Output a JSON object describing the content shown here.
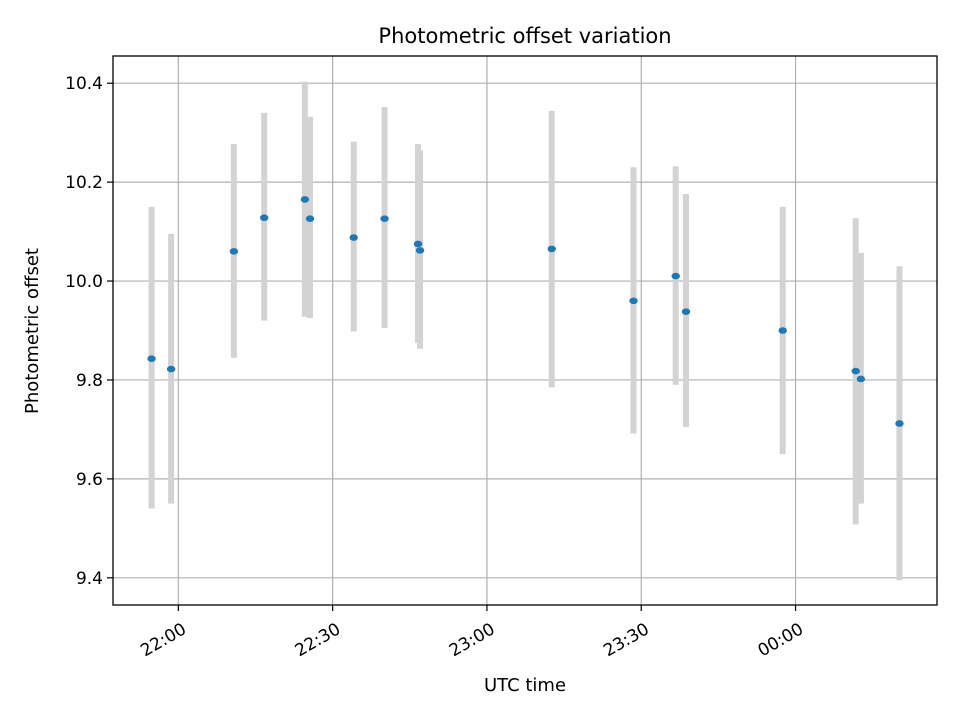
{
  "chart_data": {
    "type": "scatter",
    "title": "Photometric offset variation",
    "xlabel": "UTC time",
    "ylabel": "Photometric offset",
    "x_tick_labels": [
      "22:00",
      "22:30",
      "23:00",
      "23:30",
      "00:00"
    ],
    "x_tick_minutes": [
      0,
      30,
      60,
      90,
      120
    ],
    "xlim_minutes": [
      -12.7,
      147.5
    ],
    "y_ticks": [
      9.4,
      9.6,
      9.8,
      10.0,
      10.2,
      10.4
    ],
    "y_tick_labels": [
      "9.4",
      "9.6",
      "9.8",
      "10.0",
      "10.2",
      "10.4"
    ],
    "ylim": [
      9.345,
      10.455
    ],
    "grid": true,
    "point_color": "#1f77b4",
    "errorbar_color": "#d3d3d3",
    "points": [
      {
        "t": "21:54.8",
        "m": -5.2,
        "y": 9.843,
        "lo": 9.54,
        "hi": 10.15
      },
      {
        "t": "21:58.6",
        "m": -1.4,
        "y": 9.822,
        "lo": 9.55,
        "hi": 10.095
      },
      {
        "t": "22:10.8",
        "m": 10.8,
        "y": 10.06,
        "lo": 9.845,
        "hi": 10.277
      },
      {
        "t": "22:16.7",
        "m": 16.7,
        "y": 10.128,
        "lo": 9.92,
        "hi": 10.34
      },
      {
        "t": "22:24.6",
        "m": 24.6,
        "y": 10.165,
        "lo": 9.928,
        "hi": 10.403
      },
      {
        "t": "22:25.6",
        "m": 25.6,
        "y": 10.126,
        "lo": 9.925,
        "hi": 10.332
      },
      {
        "t": "22:34.1",
        "m": 34.1,
        "y": 10.088,
        "lo": 9.898,
        "hi": 10.282
      },
      {
        "t": "22:40.1",
        "m": 40.1,
        "y": 10.126,
        "lo": 9.905,
        "hi": 10.352
      },
      {
        "t": "22:46.6",
        "m": 46.6,
        "y": 10.075,
        "lo": 9.875,
        "hi": 10.277
      },
      {
        "t": "22:47.0",
        "m": 47.0,
        "y": 10.062,
        "lo": 9.863,
        "hi": 10.264
      },
      {
        "t": "23:12.6",
        "m": 72.6,
        "y": 10.065,
        "lo": 9.785,
        "hi": 10.344
      },
      {
        "t": "23:28.5",
        "m": 88.5,
        "y": 9.96,
        "lo": 9.692,
        "hi": 10.23
      },
      {
        "t": "23:36.7",
        "m": 96.7,
        "y": 10.01,
        "lo": 9.79,
        "hi": 10.232
      },
      {
        "t": "23:38.7",
        "m": 98.7,
        "y": 9.938,
        "lo": 9.705,
        "hi": 10.176
      },
      {
        "t": "23:57.5",
        "m": 117.5,
        "y": 9.9,
        "lo": 9.65,
        "hi": 10.15
      },
      {
        "t": "00:11.7",
        "m": 131.7,
        "y": 9.818,
        "lo": 9.508,
        "hi": 10.127
      },
      {
        "t": "00:12.7",
        "m": 132.7,
        "y": 9.802,
        "lo": 9.55,
        "hi": 10.057
      },
      {
        "t": "00:20.2",
        "m": 140.2,
        "y": 9.712,
        "lo": 9.395,
        "hi": 10.03
      }
    ]
  }
}
